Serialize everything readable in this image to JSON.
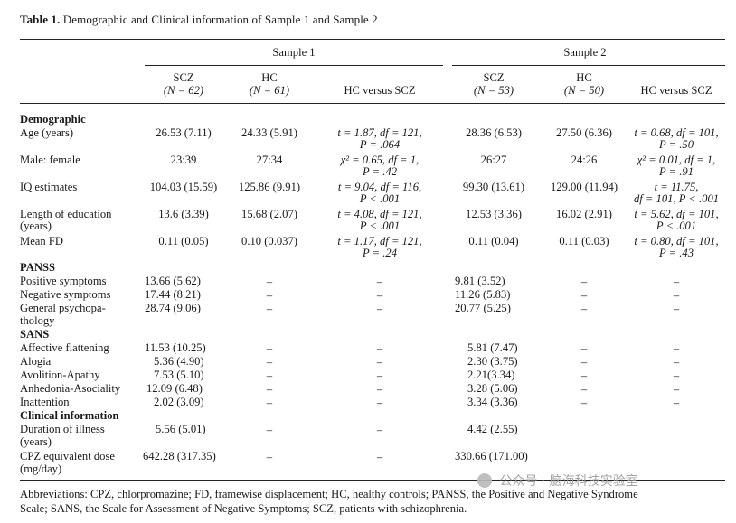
{
  "title": {
    "label": "Table 1.",
    "text": "Demographic and Clinical information of Sample 1 and Sample 2"
  },
  "groups": {
    "sample1": "Sample 1",
    "sample2": "Sample 2"
  },
  "columns": {
    "s1_scz": "SCZ",
    "s1_scz_n": "(N = 62)",
    "s1_hc": "HC",
    "s1_hc_n": "(N = 61)",
    "s1_vs": "HC versus SCZ",
    "s2_scz": "SCZ",
    "s2_scz_n": "(N = 53)",
    "s2_hc": "HC",
    "s2_hc_n": "(N = 50)",
    "s2_vs": "HC versus SCZ"
  },
  "sections": {
    "demographic": "Demographic",
    "panss": "PANSS",
    "sans": "SANS",
    "clinical": "Clinical information"
  },
  "rows": {
    "age": {
      "label": "Age (years)",
      "s1_scz": "26.53 (7.11)",
      "s1_hc": "24.33 (5.91)",
      "s1_vs_1": "t = 1.87, df = 121,",
      "s1_vs_2": "P = .064",
      "s2_scz": "28.36 (6.53)",
      "s2_hc": "27.50 (6.36)",
      "s2_vs_1": "t = 0.68, df = 101,",
      "s2_vs_2": "P = .50"
    },
    "male": {
      "label": "Male: female",
      "s1_scz": "23:39",
      "s1_hc": "27:34",
      "s1_vs_1": "χ² = 0.65, df = 1,",
      "s1_vs_2": "P = .42",
      "s2_scz": "26:27",
      "s2_hc": "24:26",
      "s2_vs_1": "χ² = 0.01, df = 1,",
      "s2_vs_2": "P = .91"
    },
    "iq": {
      "label": "IQ estimates",
      "s1_scz": "104.03 (15.59)",
      "s1_hc": "125.86 (9.91)",
      "s1_vs_1": "t = 9.04, df = 116,",
      "s1_vs_2": "P < .001",
      "s2_scz": "99.30 (13.61)",
      "s2_hc": "129.00 (11.94)",
      "s2_vs_1": "t = 11.75,",
      "s2_vs_2": "df = 101, P < .001"
    },
    "edu": {
      "label_1": "Length of education",
      "label_2": "(years)",
      "s1_scz": "13.6 (3.39)",
      "s1_hc": "15.68 (2.07)",
      "s1_vs_1": "t = 4.08, df = 121,",
      "s1_vs_2": "P < .001",
      "s2_scz": "12.53 (3.36)",
      "s2_hc": "16.02 (2.91)",
      "s2_vs_1": "t = 5.62, df = 101,",
      "s2_vs_2": "P < .001"
    },
    "fd": {
      "label": "Mean FD",
      "s1_scz": "0.11 (0.05)",
      "s1_hc": "0.10 (0.037)",
      "s1_vs_1": "t = 1.17, df = 121,",
      "s1_vs_2": "P = .24",
      "s2_scz": "0.11 (0.04)",
      "s2_hc": "0.11 (0.03)",
      "s2_vs_1": "t = 0.80, df = 101,",
      "s2_vs_2": "P = .43"
    },
    "pos": {
      "label": "Positive symptoms",
      "s1_scz": "13.66 (5.62)",
      "s2_scz": "9.81 (3.52)"
    },
    "neg": {
      "label": "Negative symptoms",
      "s1_scz": "17.44 (8.21)",
      "s2_scz": "11.26 (5.83)"
    },
    "gen": {
      "label_1": "General psychopa-",
      "label_2": "thology",
      "s1_scz": "28.74 (9.06)",
      "s2_scz": "20.77 (5.25)"
    },
    "aff": {
      "label": "Affective flattening",
      "s1_scz": "11.53 (10.25)",
      "s2_scz": "5.81 (7.47)"
    },
    "alogia": {
      "label": "Alogia",
      "s1_scz": "5.36 (4.90)",
      "s2_scz": "2.30 (3.75)"
    },
    "avol": {
      "label": "Avolition-Apathy",
      "s1_scz": "7.53 (5.10)",
      "s2_scz": "2.21(3.34)"
    },
    "anhed": {
      "label": "Anhedonia-Asociality",
      "s1_scz": "12.09 (6.48)",
      "s2_scz": "3.28 (5.06)"
    },
    "inatt": {
      "label": "Inattention",
      "s1_scz": "2.02 (3.09)",
      "s2_scz": "3.34 (3.36)"
    },
    "dur": {
      "label_1": "Duration of illness",
      "label_2": "(years)",
      "s1_scz": "5.56 (5.01)",
      "s2_scz": "4.42 (2.55)"
    },
    "cpz": {
      "label_1": "CPZ equivalent dose",
      "label_2": "(mg/day)",
      "s1_scz": "642.28 (317.35)",
      "s2_scz": "330.66 (171.00)"
    }
  },
  "dash": "–",
  "footer": {
    "line1": "Abbreviations: CPZ, chlorpromazine; FD, framewise displacement; HC, healthy controls; PANSS, the Positive and Negative Syndrome",
    "line2": "Scale; SANS, the Scale for Assessment of Negative Symptoms; SCZ, patients with schizophrenia."
  },
  "watermark": {
    "text": "公众号 · 脑海科技实验室",
    "icon": "wechat-icon"
  }
}
